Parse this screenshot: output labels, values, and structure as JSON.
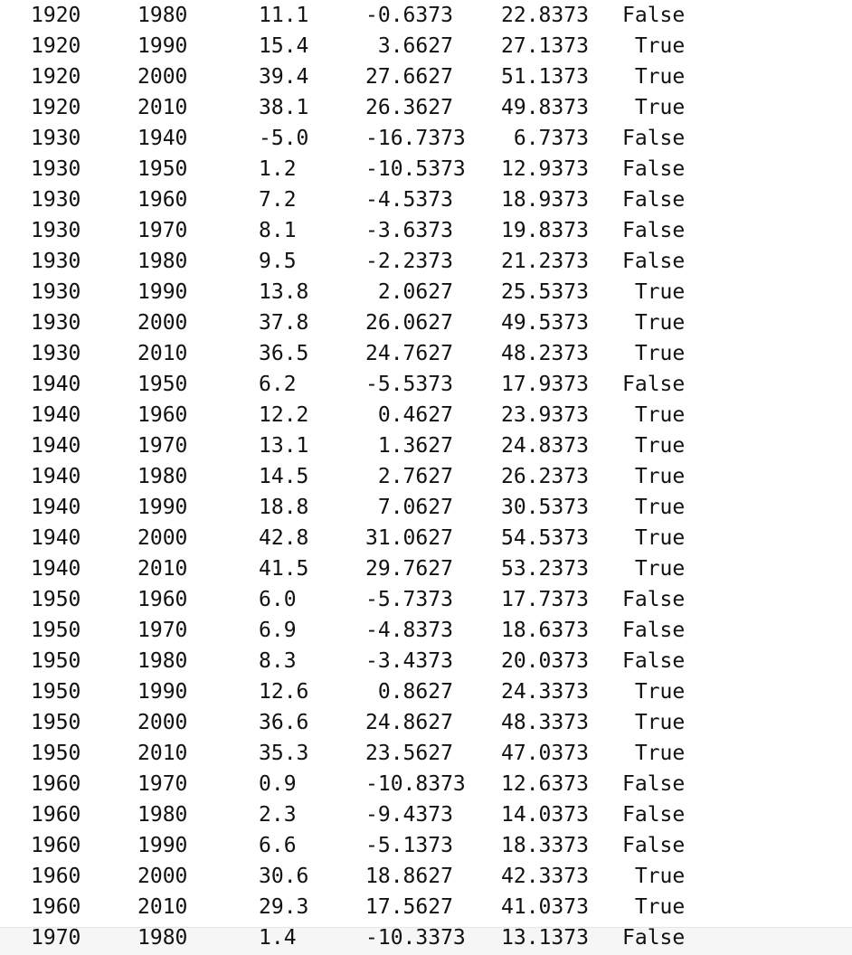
{
  "rows": [
    [
      "1920",
      "1980",
      "11.1",
      "-0.6373",
      "22.8373",
      "False"
    ],
    [
      "1920",
      "1990",
      "15.4",
      " 3.6627",
      "27.1373",
      " True"
    ],
    [
      "1920",
      "2000",
      "39.4",
      "27.6627",
      "51.1373",
      " True"
    ],
    [
      "1920",
      "2010",
      "38.1",
      "26.3627",
      "49.8373",
      " True"
    ],
    [
      "1930",
      "1940",
      "-5.0",
      "-16.7373",
      " 6.7373",
      "False"
    ],
    [
      "1930",
      "1950",
      "1.2",
      "-10.5373",
      "12.9373",
      "False"
    ],
    [
      "1930",
      "1960",
      "7.2",
      "-4.5373",
      "18.9373",
      "False"
    ],
    [
      "1930",
      "1970",
      "8.1",
      "-3.6373",
      "19.8373",
      "False"
    ],
    [
      "1930",
      "1980",
      "9.5",
      "-2.2373",
      "21.2373",
      "False"
    ],
    [
      "1930",
      "1990",
      "13.8",
      " 2.0627",
      "25.5373",
      " True"
    ],
    [
      "1930",
      "2000",
      "37.8",
      "26.0627",
      "49.5373",
      " True"
    ],
    [
      "1930",
      "2010",
      "36.5",
      "24.7627",
      "48.2373",
      " True"
    ],
    [
      "1940",
      "1950",
      "6.2",
      "-5.5373",
      "17.9373",
      "False"
    ],
    [
      "1940",
      "1960",
      "12.2",
      " 0.4627",
      "23.9373",
      " True"
    ],
    [
      "1940",
      "1970",
      "13.1",
      " 1.3627",
      "24.8373",
      " True"
    ],
    [
      "1940",
      "1980",
      "14.5",
      " 2.7627",
      "26.2373",
      " True"
    ],
    [
      "1940",
      "1990",
      "18.8",
      " 7.0627",
      "30.5373",
      " True"
    ],
    [
      "1940",
      "2000",
      "42.8",
      "31.0627",
      "54.5373",
      " True"
    ],
    [
      "1940",
      "2010",
      "41.5",
      "29.7627",
      "53.2373",
      " True"
    ],
    [
      "1950",
      "1960",
      "6.0",
      "-5.7373",
      "17.7373",
      "False"
    ],
    [
      "1950",
      "1970",
      "6.9",
      "-4.8373",
      "18.6373",
      "False"
    ],
    [
      "1950",
      "1980",
      "8.3",
      "-3.4373",
      "20.0373",
      "False"
    ],
    [
      "1950",
      "1990",
      "12.6",
      " 0.8627",
      "24.3373",
      " True"
    ],
    [
      "1950",
      "2000",
      "36.6",
      "24.8627",
      "48.3373",
      " True"
    ],
    [
      "1950",
      "2010",
      "35.3",
      "23.5627",
      "47.0373",
      " True"
    ],
    [
      "1960",
      "1970",
      "0.9",
      "-10.8373",
      "12.6373",
      "False"
    ],
    [
      "1960",
      "1980",
      "2.3",
      "-9.4373",
      "14.0373",
      "False"
    ],
    [
      "1960",
      "1990",
      "6.6",
      "-5.1373",
      "18.3373",
      "False"
    ],
    [
      "1960",
      "2000",
      "30.6",
      "18.8627",
      "42.3373",
      " True"
    ],
    [
      "1960",
      "2010",
      "29.3",
      "17.5627",
      "41.0373",
      " True"
    ],
    [
      "1970",
      "1980",
      "1.4",
      "-10.3373",
      "13.1373",
      "False"
    ]
  ]
}
